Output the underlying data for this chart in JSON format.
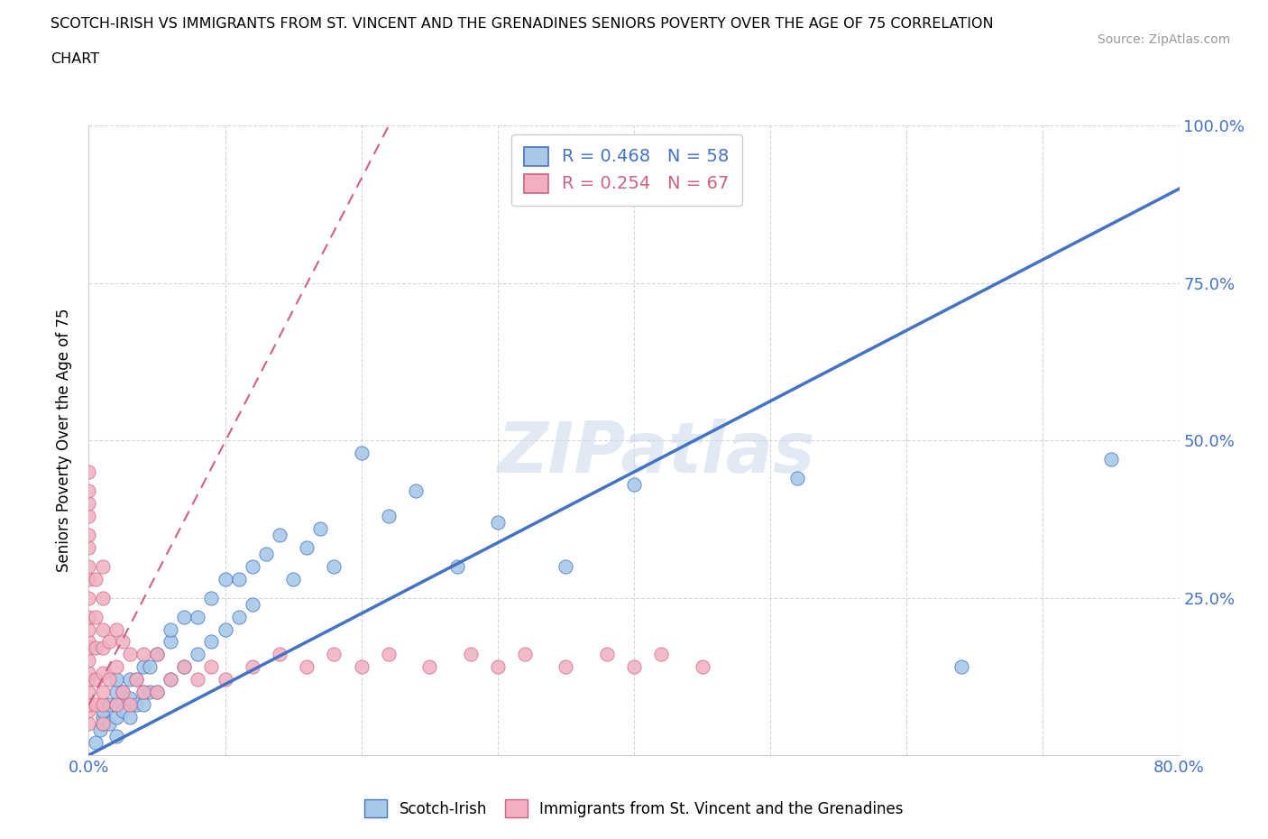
{
  "title_line1": "SCOTCH-IRISH VS IMMIGRANTS FROM ST. VINCENT AND THE GRENADINES SENIORS POVERTY OVER THE AGE OF 75 CORRELATION",
  "title_line2": "CHART",
  "source_text": "Source: ZipAtlas.com",
  "ylabel": "Seniors Poverty Over the Age of 75",
  "x_min": 0.0,
  "x_max": 0.8,
  "y_min": 0.0,
  "y_max": 1.0,
  "x_ticks": [
    0.0,
    0.1,
    0.2,
    0.3,
    0.4,
    0.5,
    0.6,
    0.7,
    0.8
  ],
  "x_tick_labels": [
    "0.0%",
    "",
    "",
    "",
    "",
    "",
    "",
    "",
    "80.0%"
  ],
  "y_ticks": [
    0.0,
    0.25,
    0.5,
    0.75,
    1.0
  ],
  "y_tick_labels_right": [
    "",
    "25.0%",
    "50.0%",
    "75.0%",
    "100.0%"
  ],
  "blue_color": "#a8c8e8",
  "pink_color": "#f0b0c0",
  "blue_line_color": "#4472c4",
  "pink_line_color": "#d06080",
  "watermark": "ZIPatlas",
  "legend_R_blue": "R = 0.468",
  "legend_N_blue": "N = 58",
  "legend_R_pink": "R = 0.254",
  "legend_N_pink": "N = 67",
  "blue_trend": [
    0.0,
    0.0,
    0.8,
    0.9
  ],
  "pink_trend": [
    0.0,
    0.08,
    0.22,
    1.0
  ],
  "blue_scatter_x": [
    0.005,
    0.008,
    0.01,
    0.01,
    0.01,
    0.015,
    0.015,
    0.02,
    0.02,
    0.02,
    0.02,
    0.02,
    0.025,
    0.025,
    0.03,
    0.03,
    0.03,
    0.035,
    0.035,
    0.04,
    0.04,
    0.04,
    0.045,
    0.045,
    0.05,
    0.05,
    0.06,
    0.06,
    0.06,
    0.07,
    0.07,
    0.08,
    0.08,
    0.09,
    0.09,
    0.1,
    0.1,
    0.11,
    0.11,
    0.12,
    0.12,
    0.13,
    0.14,
    0.15,
    0.16,
    0.17,
    0.18,
    0.2,
    0.22,
    0.24,
    0.27,
    0.3,
    0.35,
    0.4,
    0.52,
    0.64,
    0.75,
    0.43
  ],
  "blue_scatter_y": [
    0.02,
    0.04,
    0.05,
    0.06,
    0.07,
    0.05,
    0.08,
    0.03,
    0.06,
    0.08,
    0.1,
    0.12,
    0.07,
    0.1,
    0.06,
    0.09,
    0.12,
    0.08,
    0.12,
    0.08,
    0.1,
    0.14,
    0.1,
    0.14,
    0.1,
    0.16,
    0.12,
    0.18,
    0.2,
    0.14,
    0.22,
    0.16,
    0.22,
    0.18,
    0.25,
    0.2,
    0.28,
    0.22,
    0.28,
    0.24,
    0.3,
    0.32,
    0.35,
    0.28,
    0.33,
    0.36,
    0.3,
    0.48,
    0.38,
    0.42,
    0.3,
    0.37,
    0.3,
    0.43,
    0.44,
    0.14,
    0.47,
    0.96
  ],
  "pink_scatter_x": [
    0.0,
    0.0,
    0.0,
    0.0,
    0.0,
    0.0,
    0.0,
    0.0,
    0.0,
    0.0,
    0.0,
    0.0,
    0.0,
    0.0,
    0.0,
    0.0,
    0.0,
    0.0,
    0.0,
    0.0,
    0.005,
    0.005,
    0.005,
    0.005,
    0.005,
    0.01,
    0.01,
    0.01,
    0.01,
    0.01,
    0.01,
    0.01,
    0.01,
    0.015,
    0.015,
    0.02,
    0.02,
    0.02,
    0.025,
    0.025,
    0.03,
    0.03,
    0.035,
    0.04,
    0.04,
    0.05,
    0.05,
    0.06,
    0.07,
    0.08,
    0.09,
    0.1,
    0.12,
    0.14,
    0.16,
    0.18,
    0.2,
    0.22,
    0.25,
    0.28,
    0.3,
    0.32,
    0.35,
    0.38,
    0.4,
    0.42,
    0.45
  ],
  "pink_scatter_y": [
    0.05,
    0.07,
    0.08,
    0.1,
    0.12,
    0.13,
    0.15,
    0.17,
    0.18,
    0.2,
    0.22,
    0.25,
    0.28,
    0.3,
    0.33,
    0.35,
    0.38,
    0.4,
    0.42,
    0.45,
    0.08,
    0.12,
    0.17,
    0.22,
    0.28,
    0.05,
    0.08,
    0.1,
    0.13,
    0.17,
    0.2,
    0.25,
    0.3,
    0.12,
    0.18,
    0.08,
    0.14,
    0.2,
    0.1,
    0.18,
    0.08,
    0.16,
    0.12,
    0.1,
    0.16,
    0.1,
    0.16,
    0.12,
    0.14,
    0.12,
    0.14,
    0.12,
    0.14,
    0.16,
    0.14,
    0.16,
    0.14,
    0.16,
    0.14,
    0.16,
    0.14,
    0.16,
    0.14,
    0.16,
    0.14,
    0.16,
    0.14
  ]
}
